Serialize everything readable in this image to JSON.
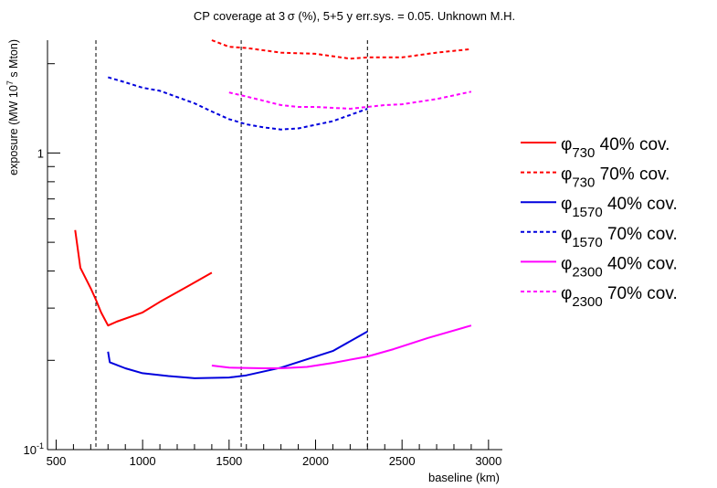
{
  "chart_data": {
    "type": "line",
    "title": "CP coverage at 3 σ (%), 5+5 y err.sys. = 0.05. Unknown M.H.",
    "xlabel": "baseline (km)",
    "ylabel": "exposure (MW 10^7 s Mton)",
    "ylabel_parts": {
      "pre": "exposure (MW 10",
      "sup": "7",
      "post": " s Mton)"
    },
    "xlim": [
      450,
      3080
    ],
    "ylim": [
      0.1,
      2.4
    ],
    "yscale": "log",
    "xticks": [
      500,
      1000,
      1500,
      2000,
      2500,
      3000
    ],
    "xtick_labels": [
      "500",
      "1000",
      "1500",
      "2000",
      "2500",
      "3000"
    ],
    "yticks": [
      {
        "value": 1,
        "base": "1",
        "exp": ""
      },
      {
        "value": 0.1,
        "base": "10",
        "exp": "-1"
      }
    ],
    "vlines": [
      730,
      1570,
      2300
    ],
    "legend_position": "right",
    "colors": {
      "red": "#ff0000",
      "blue": "#0000dd",
      "magenta": "#ff00ff",
      "axis": "#000000"
    },
    "series": [
      {
        "name": "φ 730 40% cov.",
        "symbol": "φ",
        "sub": "730",
        "label": "40% cov.",
        "color": "#ff0000",
        "dashed": false,
        "x": [
          610,
          640,
          700,
          730,
          760,
          800,
          850,
          1000,
          1100,
          1260,
          1400
        ],
        "y": [
          0.55,
          0.41,
          0.35,
          0.32,
          0.29,
          0.262,
          0.27,
          0.29,
          0.315,
          0.355,
          0.395
        ]
      },
      {
        "name": "φ 730 70% cov.",
        "symbol": "φ",
        "sub": "730",
        "label": "70% cov.",
        "color": "#ff0000",
        "dashed": true,
        "x": [
          1400,
          1500,
          1600,
          1800,
          2000,
          2200,
          2300,
          2500,
          2700,
          2900
        ],
        "y": [
          2.4,
          2.28,
          2.26,
          2.18,
          2.16,
          2.08,
          2.1,
          2.1,
          2.18,
          2.24
        ]
      },
      {
        "name": "φ 1570 40% cov.",
        "symbol": "φ",
        "sub": "1570",
        "label": "40% cov.",
        "color": "#0000dd",
        "dashed": false,
        "x": [
          800,
          810,
          900,
          1000,
          1150,
          1300,
          1500,
          1600,
          1800,
          2100,
          2300
        ],
        "y": [
          0.214,
          0.197,
          0.188,
          0.181,
          0.177,
          0.174,
          0.175,
          0.178,
          0.189,
          0.215,
          0.25
        ]
      },
      {
        "name": "φ 1570 70% cov.",
        "symbol": "φ",
        "sub": "1570",
        "label": "70% cov.",
        "color": "#0000dd",
        "dashed": true,
        "x": [
          800,
          900,
          1000,
          1100,
          1300,
          1400,
          1500,
          1600,
          1700,
          1800,
          1900,
          2100,
          2300
        ],
        "y": [
          1.8,
          1.73,
          1.66,
          1.62,
          1.47,
          1.38,
          1.3,
          1.25,
          1.22,
          1.2,
          1.21,
          1.28,
          1.41
        ]
      },
      {
        "name": "φ 2300 40% cov.",
        "symbol": "φ",
        "sub": "2300",
        "label": "40% cov.",
        "color": "#ff00ff",
        "dashed": false,
        "x": [
          1400,
          1500,
          1700,
          1800,
          1950,
          2100,
          2300,
          2450,
          2650,
          2900
        ],
        "y": [
          0.192,
          0.189,
          0.188,
          0.188,
          0.19,
          0.196,
          0.206,
          0.218,
          0.238,
          0.262
        ]
      },
      {
        "name": "φ 2300 70% cov.",
        "symbol": "φ",
        "sub": "2300",
        "label": "70% cov.",
        "color": "#ff00ff",
        "dashed": true,
        "x": [
          1500,
          1600,
          1700,
          1800,
          1900,
          2000,
          2100,
          2200,
          2300,
          2400,
          2500,
          2700,
          2900
        ],
        "y": [
          1.6,
          1.55,
          1.5,
          1.45,
          1.43,
          1.43,
          1.42,
          1.41,
          1.43,
          1.45,
          1.46,
          1.52,
          1.61
        ]
      }
    ]
  }
}
